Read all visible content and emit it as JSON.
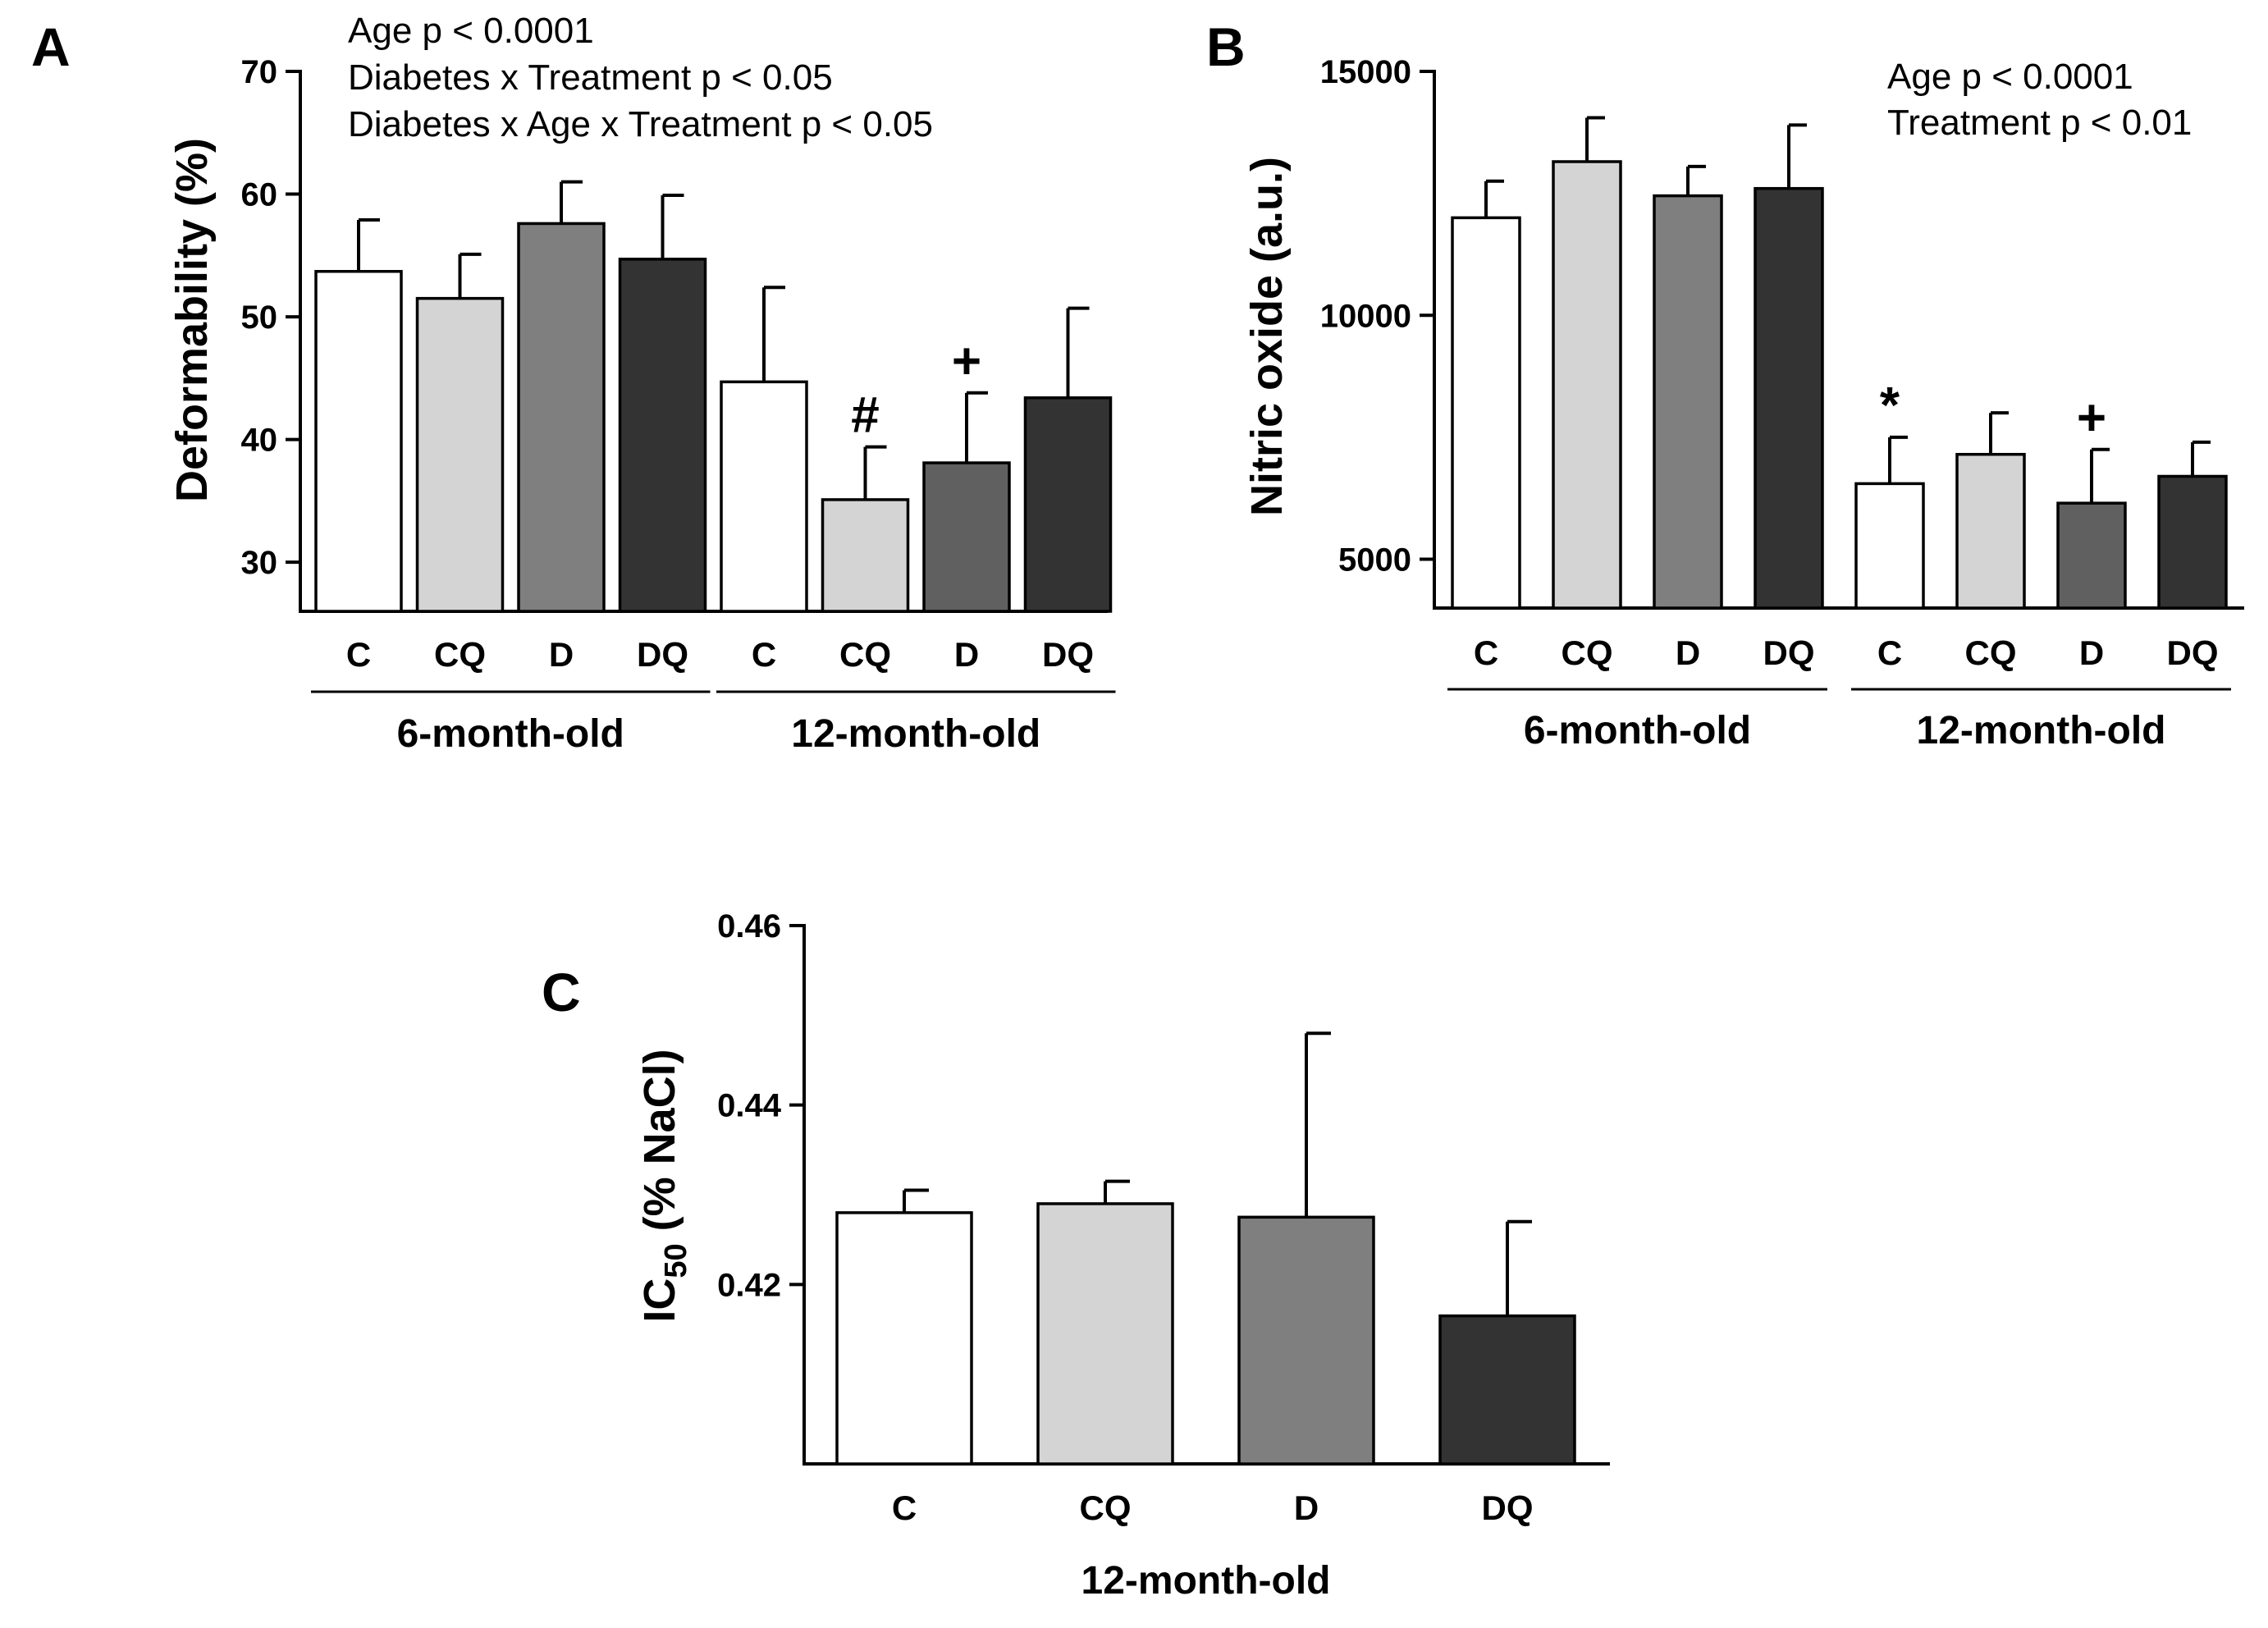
{
  "chart_data": [
    {
      "panel": "A",
      "type": "bar",
      "ylabel": "Deformability (%)",
      "ylim": [
        26,
        70
      ],
      "yticks": [
        30,
        40,
        50,
        60,
        70
      ],
      "categories": [
        "C",
        "CQ",
        "D",
        "DQ",
        "C",
        "CQ",
        "D",
        "DQ"
      ],
      "groups": [
        {
          "label": "6-month-old",
          "from": 0,
          "to": 3
        },
        {
          "label": "12-month-old",
          "from": 4,
          "to": 7
        }
      ],
      "values": [
        53.7,
        51.5,
        57.6,
        54.7,
        44.7,
        35.1,
        38.1,
        43.4
      ],
      "errors": [
        4.2,
        3.6,
        3.4,
        5.2,
        7.7,
        4.3,
        5.7,
        7.3
      ],
      "colors": [
        "#ffffff",
        "#d4d4d4",
        "#7f7f7f",
        "#333333",
        "#ffffff",
        "#d4d4d4",
        "#606060",
        "#333333"
      ],
      "markers": [
        {
          "bar": 5,
          "symbol": "#"
        },
        {
          "bar": 6,
          "symbol": "+"
        }
      ],
      "stats": [
        "Age p < 0.0001",
        "Diabetes x Treatment p < 0.05",
        "Diabetes x Age x Treatment p < 0.05"
      ],
      "grid": false
    },
    {
      "panel": "B",
      "type": "bar",
      "ylabel": "Nitric oxide (a.u.)",
      "ylim": [
        4000,
        15000
      ],
      "yticks": [
        5000,
        10000,
        15000
      ],
      "categories": [
        "C",
        "CQ",
        "D",
        "DQ",
        "C",
        "CQ",
        "D",
        "DQ"
      ],
      "groups": [
        {
          "label": "6-month-old",
          "from": 0,
          "to": 3
        },
        {
          "label": "12-month-old",
          "from": 4,
          "to": 7
        }
      ],
      "values": [
        12000,
        13150,
        12450,
        12600,
        6550,
        7150,
        6150,
        6700
      ],
      "errors": [
        750,
        900,
        600,
        1300,
        950,
        850,
        1100,
        700
      ],
      "colors": [
        "#ffffff",
        "#d4d4d4",
        "#7f7f7f",
        "#333333",
        "#ffffff",
        "#d4d4d4",
        "#606060",
        "#333333"
      ],
      "markers": [
        {
          "bar": 4,
          "symbol": "*"
        },
        {
          "bar": 6,
          "symbol": "+"
        }
      ],
      "stats": [
        "Age p < 0.0001",
        "Treatment p < 0.01"
      ],
      "grid": false
    },
    {
      "panel": "C",
      "type": "bar",
      "ylabel_main": "IC",
      "ylabel_sub": "50",
      "ylabel_rest": " (% NaCl)",
      "ylim": [
        0.4,
        0.46
      ],
      "yticks": [
        0.42,
        0.44,
        0.46
      ],
      "categories": [
        "C",
        "CQ",
        "D",
        "DQ"
      ],
      "groups": [
        {
          "label": "12-month-old",
          "from": 0,
          "to": 3
        }
      ],
      "values": [
        0.428,
        0.429,
        0.4275,
        0.4165
      ],
      "errors": [
        0.0025,
        0.0025,
        0.0205,
        0.0105
      ],
      "colors": [
        "#ffffff",
        "#d4d4d4",
        "#7f7f7f",
        "#333333"
      ],
      "markers": [],
      "stats": [],
      "grid": false
    }
  ]
}
